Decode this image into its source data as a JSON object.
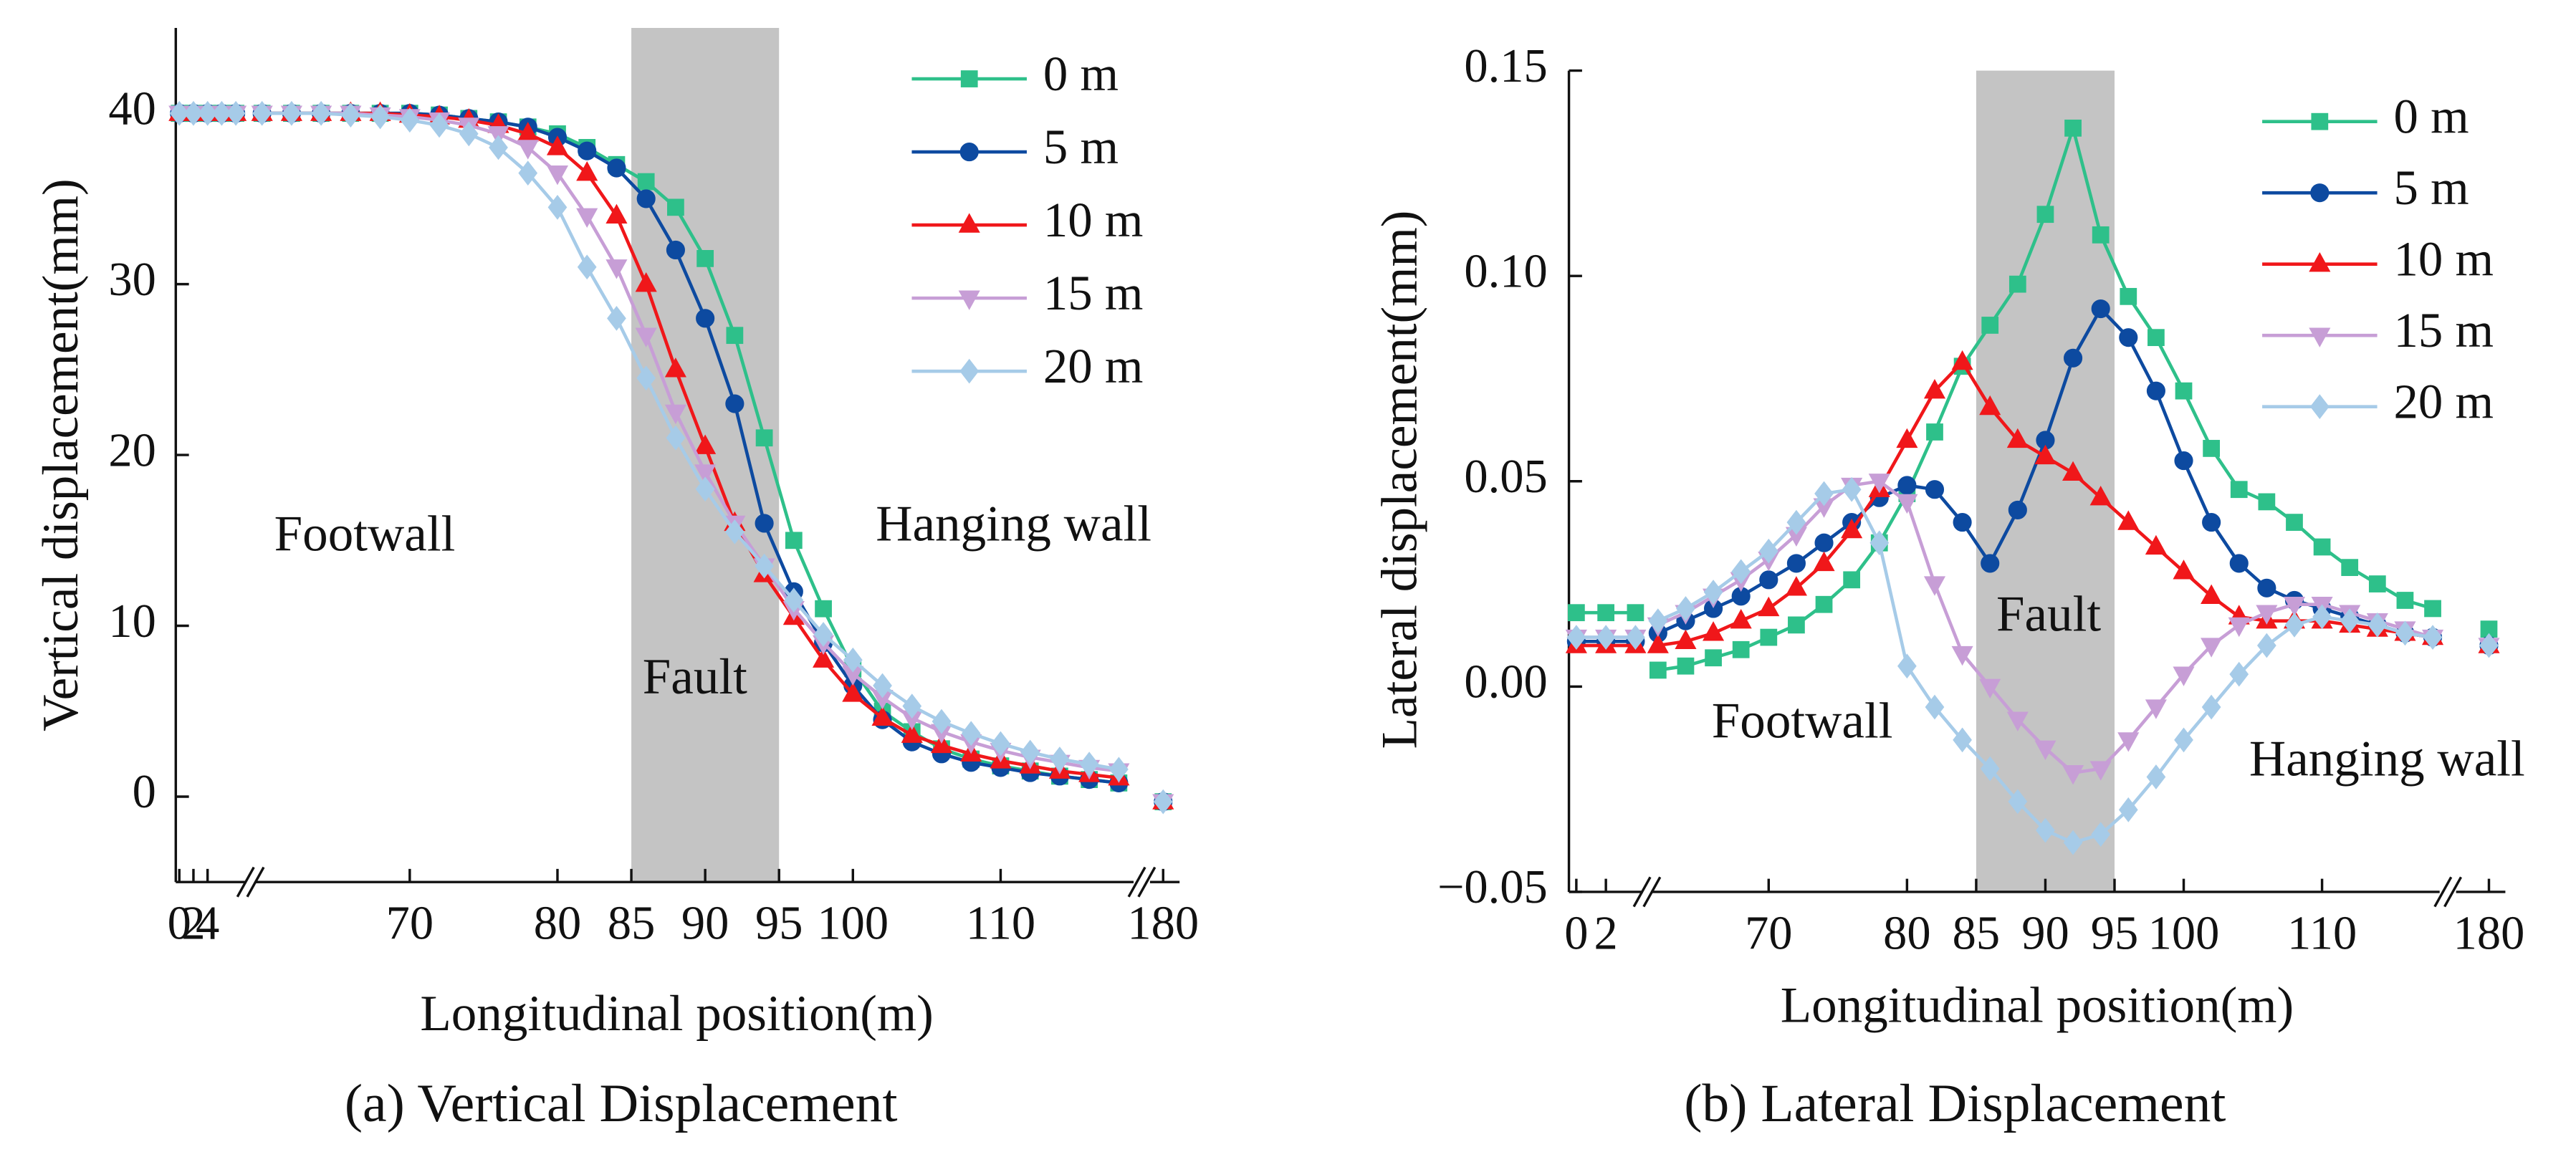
{
  "chart_data": [
    {
      "type": "line",
      "x_label": "Longitudinal position(m)",
      "y_label": "Vertical displacement(mm)",
      "caption": "(a) Vertical Displacement",
      "annotations": [
        "Footwall",
        "Hanging wall",
        "Fault"
      ],
      "fault_zone": [
        85,
        95
      ],
      "fault_color": "#c4c4c4",
      "legend": "upper right",
      "xsegments": [
        {
          "xlim": [
            -0.5,
            9.5
          ],
          "xticks": [
            0,
            2,
            4
          ]
        },
        {
          "xlim": [
            59.5,
            119
          ],
          "xticks": [
            70,
            80,
            85,
            90,
            95,
            100,
            110
          ]
        },
        {
          "xlim": [
            178,
            182
          ],
          "xticks": [
            180
          ]
        }
      ],
      "ylim": [
        -5,
        45
      ],
      "yticks": [
        0,
        10,
        20,
        30,
        40
      ],
      "x": [
        0,
        2,
        4,
        6,
        8,
        60,
        62,
        64,
        66,
        68,
        70,
        72,
        74,
        76,
        78,
        80,
        82,
        84,
        86,
        88,
        90,
        92,
        94,
        96,
        98,
        100,
        102,
        104,
        106,
        108,
        110,
        112,
        114,
        116,
        118,
        180
      ],
      "series": [
        {
          "name": "0 m",
          "color": "#2ec08a",
          "marker": "square",
          "values": [
            40,
            40,
            40,
            40,
            40,
            40,
            40,
            40,
            40,
            40,
            40,
            39.9,
            39.7,
            39.5,
            39.2,
            38.8,
            38,
            37,
            36,
            34.5,
            31.5,
            27,
            21,
            15,
            11,
            7.5,
            5,
            3.8,
            2.8,
            2.2,
            1.8,
            1.5,
            1.2,
            1,
            0.8,
            -0.3
          ]
        },
        {
          "name": "5 m",
          "color": "#0d4aa0",
          "marker": "circle",
          "values": [
            40,
            40,
            40,
            40,
            40,
            40,
            40,
            40,
            40,
            40,
            40,
            39.9,
            39.7,
            39.5,
            39.2,
            38.6,
            37.8,
            36.8,
            35,
            32,
            28,
            23,
            16,
            12,
            9,
            6.5,
            4.5,
            3.2,
            2.5,
            2,
            1.7,
            1.4,
            1.2,
            1,
            0.8,
            -0.3
          ]
        },
        {
          "name": "10 m",
          "color": "#f0171a",
          "marker": "triangle-up",
          "values": [
            40,
            40,
            40,
            40,
            40,
            40,
            40,
            40,
            40,
            40,
            39.9,
            39.8,
            39.6,
            39.3,
            38.8,
            38,
            36.5,
            34,
            30,
            25,
            20.5,
            16,
            13,
            10.5,
            8,
            6,
            4.6,
            3.6,
            3,
            2.5,
            2.1,
            1.8,
            1.5,
            1.3,
            1.1,
            -0.3
          ]
        },
        {
          "name": "15 m",
          "color": "#c79ed6",
          "marker": "triangle-down",
          "values": [
            40,
            40,
            40,
            40,
            40,
            40,
            40,
            40,
            40,
            39.9,
            39.8,
            39.6,
            39.3,
            38.8,
            38,
            36.5,
            34,
            31,
            27,
            22.5,
            19,
            16,
            13.5,
            11,
            9,
            7.2,
            5.8,
            4.6,
            3.8,
            3.2,
            2.7,
            2.3,
            2,
            1.7,
            1.5,
            -0.3
          ]
        },
        {
          "name": "20 m",
          "color": "#a6cbe8",
          "marker": "diamond",
          "values": [
            40,
            40,
            40,
            40,
            40,
            40,
            40,
            40,
            39.9,
            39.8,
            39.6,
            39.3,
            38.8,
            38,
            36.5,
            34.5,
            31,
            28,
            24.5,
            21,
            18,
            15.5,
            13.5,
            11.5,
            9.5,
            8,
            6.5,
            5.3,
            4.4,
            3.7,
            3.1,
            2.6,
            2.2,
            1.9,
            1.6,
            -0.3
          ]
        }
      ]
    },
    {
      "type": "line",
      "x_label": "Longitudinal position(m)",
      "y_label": "Lateral displacement(mm)",
      "caption": "(b) Lateral Displacement",
      "annotations": [
        "Fault",
        "Footwall",
        "Hanging wall"
      ],
      "fault_zone": [
        85,
        95
      ],
      "fault_color": "#c4c4c4",
      "legend": "upper right",
      "xsegments": [
        {
          "xlim": [
            -0.5,
            4.5
          ],
          "xticks": [
            0,
            2
          ]
        },
        {
          "xlim": [
            61.5,
            118.5
          ],
          "xticks": [
            70,
            80,
            85,
            90,
            95,
            100,
            110
          ]
        },
        {
          "xlim": [
            176,
            184
          ],
          "xticks": [
            180
          ]
        }
      ],
      "ylim": [
        -0.05,
        0.15
      ],
      "yticks": [
        {
          "value": -0.05,
          "label": "−0.05"
        },
        {
          "value": 0,
          "label": "0.00"
        },
        0.05,
        {
          "value": 0.1,
          "label": "0.10"
        },
        0.15
      ],
      "x": [
        0,
        2,
        4,
        62,
        64,
        66,
        68,
        70,
        72,
        74,
        76,
        78,
        80,
        82,
        84,
        86,
        88,
        90,
        92,
        94,
        96,
        98,
        100,
        102,
        104,
        106,
        108,
        110,
        112,
        114,
        116,
        118,
        180
      ],
      "series": [
        {
          "name": "0 m",
          "color": "#2ec08a",
          "marker": "square",
          "values": [
            0.018,
            0.018,
            0.018,
            0.004,
            0.005,
            0.007,
            0.009,
            0.012,
            0.015,
            0.02,
            0.026,
            0.035,
            0.047,
            0.062,
            0.078,
            0.088,
            0.098,
            0.115,
            0.136,
            0.11,
            0.095,
            0.085,
            0.072,
            0.058,
            0.048,
            0.045,
            0.04,
            0.034,
            0.029,
            0.025,
            0.021,
            0.019,
            0.014
          ]
        },
        {
          "name": "5 m",
          "color": "#0d4aa0",
          "marker": "circle",
          "values": [
            0.011,
            0.011,
            0.011,
            0.013,
            0.016,
            0.019,
            0.022,
            0.026,
            0.03,
            0.035,
            0.04,
            0.046,
            0.049,
            0.048,
            0.04,
            0.03,
            0.043,
            0.06,
            0.08,
            0.092,
            0.085,
            0.072,
            0.055,
            0.04,
            0.03,
            0.024,
            0.021,
            0.019,
            0.017,
            0.015,
            0.013,
            0.012,
            0.01
          ]
        },
        {
          "name": "10 m",
          "color": "#f0171a",
          "marker": "triangle-up",
          "values": [
            0.01,
            0.01,
            0.01,
            0.01,
            0.011,
            0.013,
            0.016,
            0.019,
            0.024,
            0.03,
            0.038,
            0.048,
            0.06,
            0.072,
            0.079,
            0.068,
            0.06,
            0.056,
            0.052,
            0.046,
            0.04,
            0.034,
            0.028,
            0.022,
            0.017,
            0.016,
            0.016,
            0.016,
            0.015,
            0.014,
            0.013,
            0.012,
            0.01
          ]
        },
        {
          "name": "15 m",
          "color": "#c79ed6",
          "marker": "triangle-down",
          "values": [
            0.012,
            0.012,
            0.012,
            0.015,
            0.018,
            0.022,
            0.026,
            0.031,
            0.037,
            0.044,
            0.049,
            0.05,
            0.045,
            0.025,
            0.008,
            0,
            -0.008,
            -0.015,
            -0.021,
            -0.02,
            -0.013,
            -0.005,
            0.003,
            0.01,
            0.015,
            0.018,
            0.02,
            0.02,
            0.018,
            0.016,
            0.014,
            0.012,
            0.01
          ]
        },
        {
          "name": "20 m",
          "color": "#a6cbe8",
          "marker": "diamond",
          "values": [
            0.012,
            0.012,
            0.012,
            0.016,
            0.019,
            0.023,
            0.028,
            0.033,
            0.04,
            0.047,
            0.048,
            0.035,
            0.005,
            -0.005,
            -0.013,
            -0.02,
            -0.028,
            -0.035,
            -0.038,
            -0.036,
            -0.03,
            -0.022,
            -0.013,
            -0.005,
            0.003,
            0.01,
            0.015,
            0.017,
            0.016,
            0.015,
            0.013,
            0.012,
            0.01
          ]
        }
      ]
    }
  ]
}
